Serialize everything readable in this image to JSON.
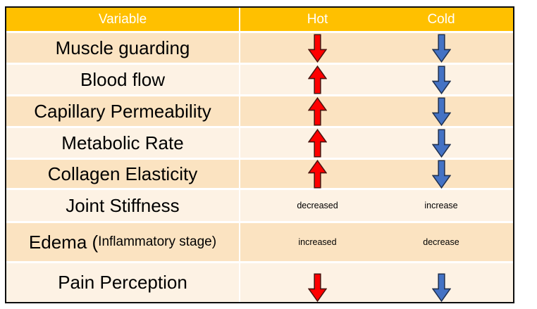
{
  "chart_data": {
    "type": "table",
    "columns": [
      "Variable",
      "Hot",
      "Cold"
    ],
    "rows": [
      [
        "Muscle guarding",
        "decrease",
        "decrease"
      ],
      [
        "Blood flow",
        "increase",
        "decrease"
      ],
      [
        "Capillary Permeability",
        "increase",
        "decrease"
      ],
      [
        "Metabolic Rate",
        "increase",
        "decrease"
      ],
      [
        "Collagen Elasticity",
        "increase",
        "decrease"
      ],
      [
        "Joint Stiffness",
        "decreased",
        "increase"
      ],
      [
        "Edema (Inflammatory stage)",
        "increased",
        "decrease"
      ],
      [
        "Pain Perception",
        "decrease",
        "decrease"
      ]
    ],
    "legend_position": "none",
    "grid": "white gaps between rows, single white column divider after first column"
  },
  "table": {
    "columns": [
      "Variable",
      "Hot",
      "Cold"
    ],
    "rows": [
      {
        "variable": "Muscle guarding",
        "shade": "dark",
        "hot": {
          "type": "arrow",
          "color": "red",
          "direction": "down"
        },
        "cold": {
          "type": "arrow",
          "color": "blue",
          "direction": "down"
        }
      },
      {
        "variable": "Blood flow",
        "shade": "light",
        "hot": {
          "type": "arrow",
          "color": "red",
          "direction": "up"
        },
        "cold": {
          "type": "arrow",
          "color": "blue",
          "direction": "down"
        }
      },
      {
        "variable": "Capillary Permeability",
        "shade": "dark",
        "hot": {
          "type": "arrow",
          "color": "red",
          "direction": "up"
        },
        "cold": {
          "type": "arrow",
          "color": "blue",
          "direction": "down"
        }
      },
      {
        "variable": "Metabolic Rate",
        "shade": "light",
        "hot": {
          "type": "arrow",
          "color": "red",
          "direction": "up"
        },
        "cold": {
          "type": "arrow",
          "color": "blue",
          "direction": "down"
        }
      },
      {
        "variable": "Collagen Elasticity",
        "shade": "dark",
        "hot": {
          "type": "arrow",
          "color": "red",
          "direction": "up"
        },
        "cold": {
          "type": "arrow",
          "color": "blue",
          "direction": "down"
        }
      },
      {
        "variable": "Joint Stiffness",
        "shade": "light",
        "hot": {
          "type": "text",
          "value": "decreased"
        },
        "cold": {
          "type": "text",
          "value": "increase"
        }
      },
      {
        "variable": "Edema (",
        "variable_suffix": "Inflammatory stage)",
        "shade": "dark",
        "hot": {
          "type": "text",
          "value": "increased"
        },
        "cold": {
          "type": "text",
          "value": "decrease"
        }
      },
      {
        "variable": "Pain Perception",
        "shade": "light",
        "hot": {
          "type": "arrow",
          "color": "red",
          "direction": "down"
        },
        "cold": {
          "type": "arrow",
          "color": "blue",
          "direction": "down"
        }
      }
    ]
  },
  "colors": {
    "header_bg": "#FFC000",
    "header_text": "#FFFFFF",
    "row_dark": "#FBE3C1",
    "row_light": "#FDF2E4",
    "table_border": "#0D0D0D",
    "text": "#000000",
    "red_arrow_fill": "#FF0000",
    "red_arrow_stroke": "#4A1410",
    "blue_arrow_fill": "#4472C4",
    "blue_arrow_stroke": "#203150"
  }
}
